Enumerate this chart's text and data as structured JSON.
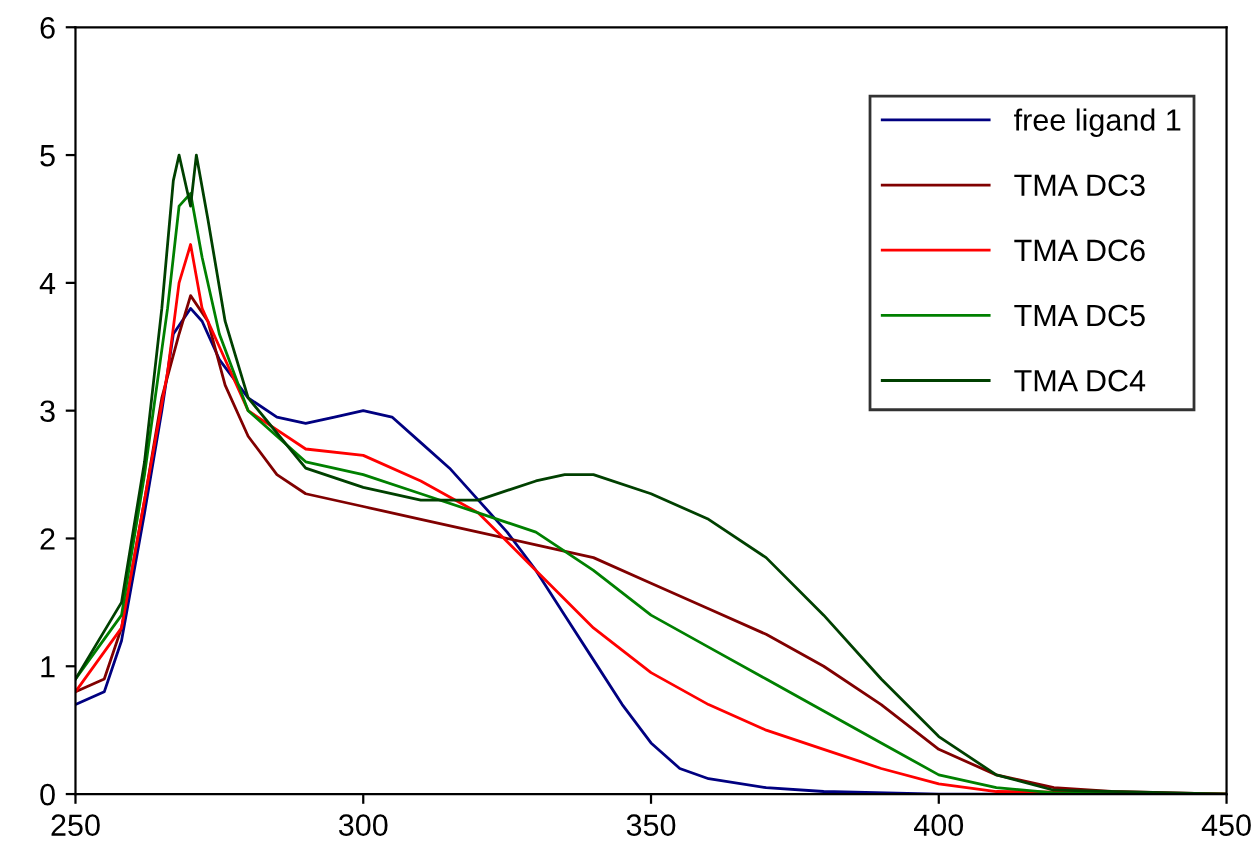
{
  "chart_data": {
    "type": "line",
    "xlim": [
      250,
      450
    ],
    "ylim": [
      0,
      6
    ],
    "xticks": [
      250,
      300,
      350,
      400,
      450
    ],
    "yticks": [
      0,
      1,
      2,
      3,
      4,
      5,
      6
    ],
    "grid": false,
    "legend": "top right",
    "marker": "none",
    "line_style": "solid",
    "series": [
      {
        "name": "free ligand 1",
        "color": "#000080",
        "x": [
          250,
          255,
          258,
          262,
          265,
          267,
          270,
          272,
          275,
          280,
          285,
          290,
          295,
          300,
          305,
          310,
          315,
          320,
          325,
          330,
          335,
          340,
          345,
          350,
          355,
          360,
          370,
          380,
          400,
          450
        ],
        "values": [
          0.7,
          0.8,
          1.2,
          2.2,
          3.0,
          3.6,
          3.8,
          3.7,
          3.4,
          3.1,
          2.95,
          2.9,
          2.95,
          3.0,
          2.95,
          2.75,
          2.55,
          2.3,
          2.05,
          1.75,
          1.4,
          1.05,
          0.7,
          0.4,
          0.2,
          0.12,
          0.05,
          0.02,
          0,
          0
        ]
      },
      {
        "name": "TMA DC3",
        "color": "#800000",
        "x": [
          250,
          255,
          258,
          262,
          265,
          268,
          270,
          273,
          276,
          280,
          285,
          290,
          300,
          310,
          320,
          330,
          340,
          350,
          360,
          370,
          380,
          390,
          400,
          410,
          420,
          430,
          450
        ],
        "values": [
          0.8,
          0.9,
          1.3,
          2.3,
          3.1,
          3.6,
          3.9,
          3.7,
          3.2,
          2.8,
          2.5,
          2.35,
          2.25,
          2.15,
          2.05,
          1.95,
          1.85,
          1.65,
          1.45,
          1.25,
          1.0,
          0.7,
          0.35,
          0.15,
          0.05,
          0.02,
          0
        ]
      },
      {
        "name": "TMA DC6",
        "color": "#ff0000",
        "x": [
          250,
          258,
          262,
          266,
          268,
          270,
          272,
          275,
          280,
          290,
          300,
          310,
          320,
          330,
          340,
          350,
          360,
          370,
          380,
          390,
          400,
          410,
          450
        ],
        "values": [
          0.8,
          1.3,
          2.3,
          3.3,
          4.0,
          4.3,
          3.8,
          3.5,
          3.0,
          2.7,
          2.65,
          2.45,
          2.2,
          1.75,
          1.3,
          0.95,
          0.7,
          0.5,
          0.35,
          0.2,
          0.08,
          0.02,
          0
        ]
      },
      {
        "name": "TMA DC5",
        "color": "#008000",
        "x": [
          250,
          258,
          262,
          266,
          268,
          270,
          272,
          275,
          280,
          290,
          300,
          310,
          320,
          330,
          340,
          350,
          360,
          370,
          380,
          390,
          400,
          410,
          420,
          450
        ],
        "values": [
          0.9,
          1.4,
          2.5,
          3.8,
          4.6,
          4.7,
          4.2,
          3.6,
          3.0,
          2.6,
          2.5,
          2.35,
          2.2,
          2.05,
          1.75,
          1.4,
          1.15,
          0.9,
          0.65,
          0.4,
          0.15,
          0.05,
          0.01,
          0
        ]
      },
      {
        "name": "TMA DC4",
        "color": "#004000",
        "x": [
          250,
          258,
          262,
          265,
          267,
          268,
          270,
          271,
          273,
          276,
          280,
          290,
          300,
          310,
          320,
          330,
          335,
          340,
          350,
          360,
          370,
          380,
          390,
          400,
          410,
          420,
          450
        ],
        "values": [
          0.9,
          1.5,
          2.6,
          3.8,
          4.8,
          5.0,
          4.6,
          5.0,
          4.5,
          3.7,
          3.1,
          2.55,
          2.4,
          2.3,
          2.3,
          2.45,
          2.5,
          2.5,
          2.35,
          2.15,
          1.85,
          1.4,
          0.9,
          0.45,
          0.15,
          0.03,
          0
        ]
      }
    ]
  }
}
